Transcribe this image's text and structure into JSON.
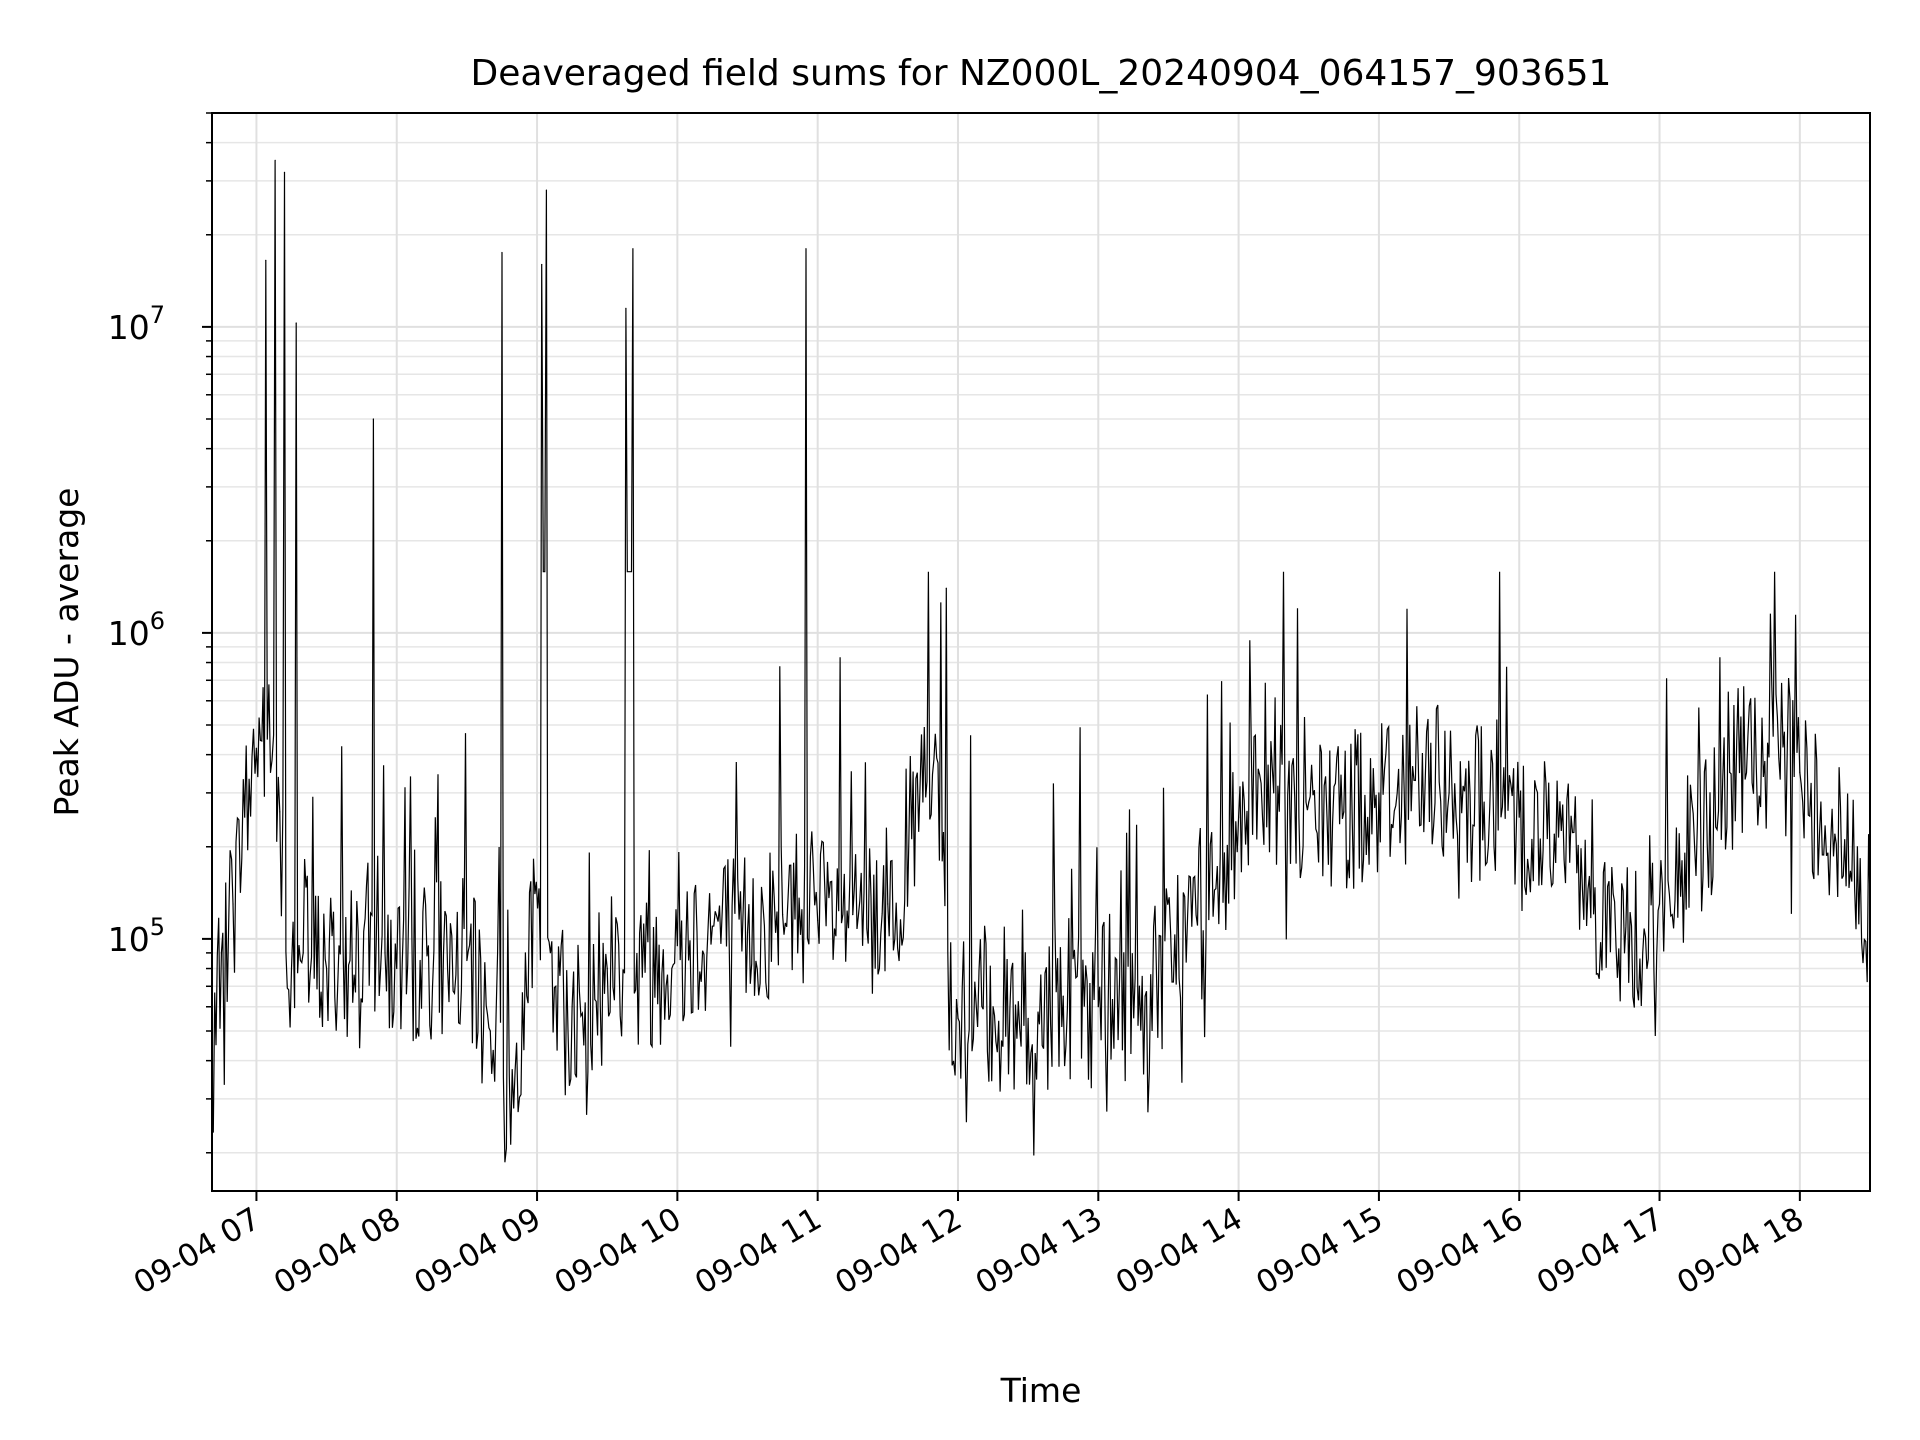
{
  "chart_data": {
    "type": "line",
    "title": "Deaveraged field sums for NZ000L_20240904_064157_903651",
    "xlabel": "Time",
    "ylabel": "Peak ADU - average",
    "y_scale": "log",
    "ylim": [
      15000,
      50000000
    ],
    "xlim": [
      "2024-09-04 06:41",
      "2024-09-04 18:30"
    ],
    "x_ticks": [
      "09-04 07",
      "09-04 08",
      "09-04 09",
      "09-04 10",
      "09-04 11",
      "09-04 12",
      "09-04 13",
      "09-04 14",
      "09-04 15",
      "09-04 16",
      "09-04 17",
      "09-04 18"
    ],
    "y_ticks": [
      {
        "base": "10",
        "exp": "5"
      },
      {
        "base": "10",
        "exp": "6"
      },
      {
        "base": "10",
        "exp": "7"
      }
    ],
    "grid": true,
    "line_color": "#000000",
    "series": [
      {
        "x": [
          "2024-09-04 06:41",
          "2024-09-04 06:45",
          "2024-09-04 06:50",
          "2024-09-04 06:55",
          "2024-09-04 07:00",
          "2024-09-04 07:04",
          "2024-09-04 07:06",
          "2024-09-04 07:08",
          "2024-09-04 07:10",
          "2024-09-04 07:12",
          "2024-09-04 07:15",
          "2024-09-04 07:17",
          "2024-09-04 07:20",
          "2024-09-04 07:30",
          "2024-09-04 07:40",
          "2024-09-04 07:50",
          "2024-09-04 07:55",
          "2024-09-04 08:00",
          "2024-09-04 08:10",
          "2024-09-04 08:20",
          "2024-09-04 08:30",
          "2024-09-04 08:40",
          "2024-09-04 08:45",
          "2024-09-04 08:50",
          "2024-09-04 08:55",
          "2024-09-04 09:02",
          "2024-09-04 09:04",
          "2024-09-04 09:08",
          "2024-09-04 09:15",
          "2024-09-04 09:20",
          "2024-09-04 09:30",
          "2024-09-04 09:38",
          "2024-09-04 09:41",
          "2024-09-04 09:45",
          "2024-09-04 10:00",
          "2024-09-04 10:15",
          "2024-09-04 10:30",
          "2024-09-04 10:45",
          "2024-09-04 10:55",
          "2024-09-04 11:00",
          "2024-09-04 11:15",
          "2024-09-04 11:30",
          "2024-09-04 11:45",
          "2024-09-04 11:55",
          "2024-09-04 12:00",
          "2024-09-04 12:15",
          "2024-09-04 12:30",
          "2024-09-04 12:45",
          "2024-09-04 13:00",
          "2024-09-04 13:20",
          "2024-09-04 13:40",
          "2024-09-04 14:00",
          "2024-09-04 14:15",
          "2024-09-04 14:30",
          "2024-09-04 14:45",
          "2024-09-04 15:00",
          "2024-09-04 15:15",
          "2024-09-04 15:30",
          "2024-09-04 15:45",
          "2024-09-04 16:00",
          "2024-09-04 16:15",
          "2024-09-04 16:30",
          "2024-09-04 16:45",
          "2024-09-04 17:00",
          "2024-09-04 17:15",
          "2024-09-04 17:30",
          "2024-09-04 17:45",
          "2024-09-04 18:00",
          "2024-09-04 18:15",
          "2024-09-04 18:30"
        ],
        "y": [
          25000,
          90000,
          130000,
          250000,
          420000,
          16500000,
          350000,
          35000000,
          260000,
          32000000,
          80000,
          10300000,
          90000,
          80000,
          85000,
          5000000,
          90000,
          80000,
          85000,
          90000,
          85000,
          50000,
          17500000,
          28000,
          90000,
          16000000,
          28000000,
          70000,
          60000,
          45000,
          80000,
          11500000,
          18000000,
          75000,
          95000,
          110000,
          105000,
          120000,
          18000000,
          115000,
          120000,
          130000,
          280000,
          1400000,
          55000,
          60000,
          55000,
          65000,
          60000,
          65000,
          110000,
          250000,
          300000,
          280000,
          260000,
          300000,
          330000,
          300000,
          280000,
          250000,
          220000,
          160000,
          90000,
          130000,
          200000,
          350000,
          380000,
          350000,
          220000,
          130000
        ]
      }
    ]
  }
}
